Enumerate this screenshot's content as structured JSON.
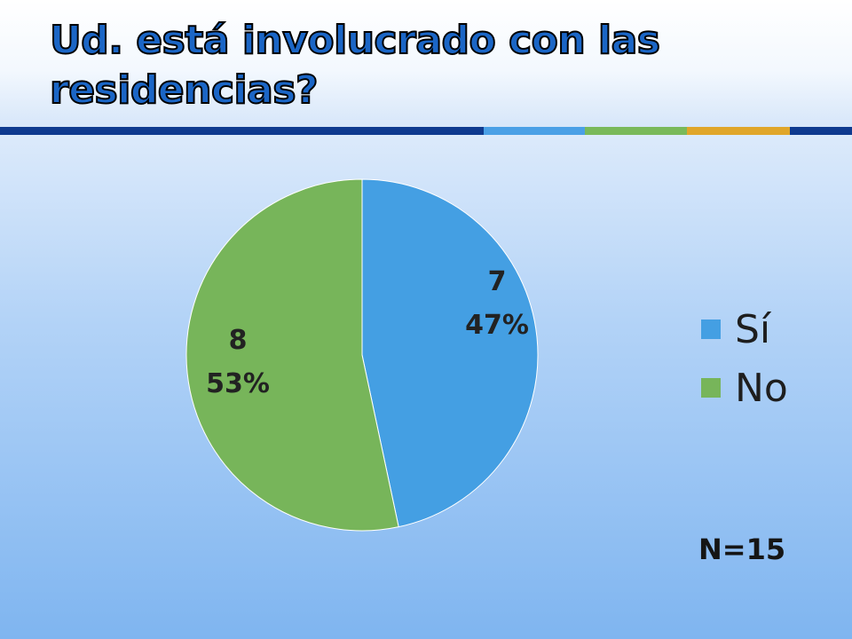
{
  "slide": {
    "title": "Ud. está involucrado con las residencias?",
    "note": "N=15"
  },
  "chart_data": {
    "type": "pie",
    "title": "",
    "slices": [
      {
        "label": "Sí",
        "value": 7,
        "percent": "47%",
        "color": "#449fe3"
      },
      {
        "label": "No",
        "value": 8,
        "percent": "53%",
        "color": "#77b55a"
      }
    ],
    "legend": {
      "position": "right",
      "items": [
        "Sí",
        "No"
      ]
    }
  },
  "colors": {
    "title_fill": "#1b66c6",
    "rule_main": "#0e3a8f",
    "rule_accents": [
      "#4aa0e6",
      "#79b95a",
      "#e0a62a"
    ]
  }
}
